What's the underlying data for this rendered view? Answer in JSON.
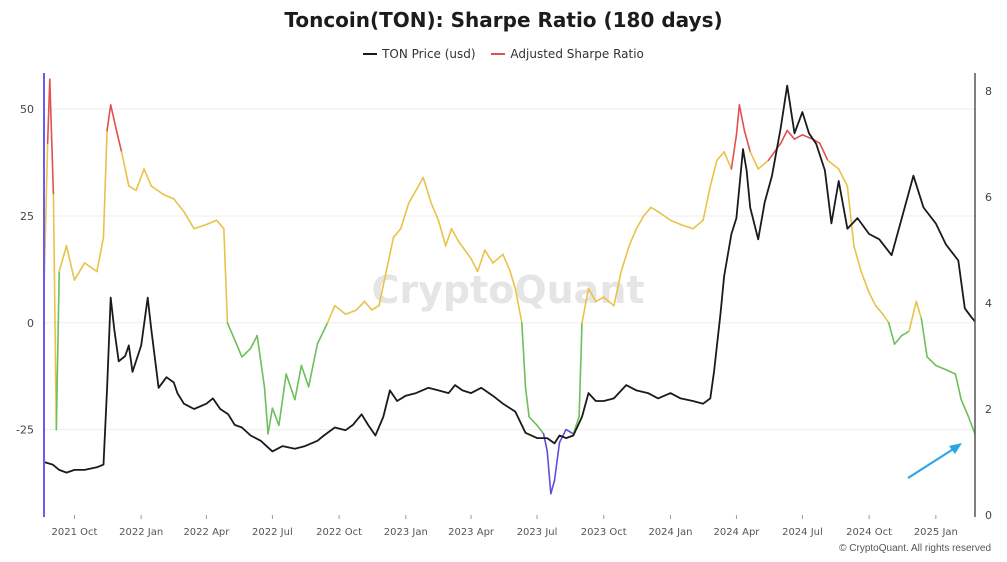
{
  "chart_data": {
    "type": "line",
    "title": "Toncoin(TON): Sharpe Ratio (180 days)",
    "watermark": "CryptoQuant",
    "copyright": "© CryptoQuant. All rights reserved",
    "legend": [
      {
        "name": "TON Price (usd)",
        "color": "#1a1a1a"
      },
      {
        "name": "Adjusted Sharpe Ratio",
        "color": "#e05050"
      }
    ],
    "x_ticks": [
      "2021 Oct",
      "2022 Jan",
      "2022 Apr",
      "2022 Jul",
      "2022 Oct",
      "2023 Jan",
      "2023 Apr",
      "2023 Jul",
      "2023 Oct",
      "2024 Jan",
      "2024 Apr",
      "2024 Jul",
      "2024 Oct",
      "2025 Jan"
    ],
    "x_range": [
      "2021-08-20",
      "2025-02-24"
    ],
    "y_left": {
      "ticks": [
        50,
        25,
        0,
        -25
      ],
      "range": [
        -45,
        58
      ]
    },
    "y_right": {
      "ticks": [
        8,
        6,
        4,
        2,
        0
      ],
      "range": [
        0,
        8.3
      ]
    },
    "sharpe_colors": {
      "high": "#e05050",
      "mid": "#e8c34a",
      "low": "#6cbf5a",
      "very_low": "#5b4fe0"
    },
    "sharpe_thresholds": {
      "high_above": 40,
      "mid_above": 0,
      "low_above": -25
    },
    "series": [
      {
        "name": "TON Price (usd)",
        "axis": "right",
        "points": [
          [
            "2021-08-20",
            1.0
          ],
          [
            "2021-09-01",
            0.95
          ],
          [
            "2021-09-10",
            0.85
          ],
          [
            "2021-09-20",
            0.8
          ],
          [
            "2021-10-01",
            0.85
          ],
          [
            "2021-10-15",
            0.85
          ],
          [
            "2021-11-01",
            0.9
          ],
          [
            "2021-11-10",
            0.95
          ],
          [
            "2021-11-15",
            2.4
          ],
          [
            "2021-11-20",
            4.1
          ],
          [
            "2021-11-25",
            3.5
          ],
          [
            "2021-12-01",
            2.9
          ],
          [
            "2021-12-10",
            3.0
          ],
          [
            "2021-12-15",
            3.2
          ],
          [
            "2021-12-20",
            2.7
          ],
          [
            "2022-01-01",
            3.2
          ],
          [
            "2022-01-10",
            4.1
          ],
          [
            "2022-01-15",
            3.5
          ],
          [
            "2022-01-25",
            2.4
          ],
          [
            "2022-02-05",
            2.6
          ],
          [
            "2022-02-15",
            2.5
          ],
          [
            "2022-02-20",
            2.3
          ],
          [
            "2022-03-01",
            2.1
          ],
          [
            "2022-03-15",
            2.0
          ],
          [
            "2022-04-01",
            2.1
          ],
          [
            "2022-04-10",
            2.2
          ],
          [
            "2022-04-20",
            2.0
          ],
          [
            "2022-05-01",
            1.9
          ],
          [
            "2022-05-10",
            1.7
          ],
          [
            "2022-05-20",
            1.65
          ],
          [
            "2022-06-01",
            1.5
          ],
          [
            "2022-06-15",
            1.4
          ],
          [
            "2022-07-01",
            1.2
          ],
          [
            "2022-07-15",
            1.3
          ],
          [
            "2022-08-01",
            1.25
          ],
          [
            "2022-08-15",
            1.3
          ],
          [
            "2022-09-01",
            1.4
          ],
          [
            "2022-09-10",
            1.5
          ],
          [
            "2022-09-25",
            1.65
          ],
          [
            "2022-10-10",
            1.6
          ],
          [
            "2022-10-20",
            1.7
          ],
          [
            "2022-11-01",
            1.9
          ],
          [
            "2022-11-10",
            1.7
          ],
          [
            "2022-11-20",
            1.5
          ],
          [
            "2022-12-01",
            1.85
          ],
          [
            "2022-12-10",
            2.35
          ],
          [
            "2022-12-20",
            2.15
          ],
          [
            "2023-01-01",
            2.25
          ],
          [
            "2023-01-15",
            2.3
          ],
          [
            "2023-02-01",
            2.4
          ],
          [
            "2023-02-15",
            2.35
          ],
          [
            "2023-03-01",
            2.3
          ],
          [
            "2023-03-10",
            2.45
          ],
          [
            "2023-03-20",
            2.35
          ],
          [
            "2023-04-01",
            2.3
          ],
          [
            "2023-04-15",
            2.4
          ],
          [
            "2023-05-01",
            2.25
          ],
          [
            "2023-05-15",
            2.1
          ],
          [
            "2023-06-01",
            1.95
          ],
          [
            "2023-06-15",
            1.55
          ],
          [
            "2023-07-01",
            1.45
          ],
          [
            "2023-07-15",
            1.45
          ],
          [
            "2023-07-25",
            1.35
          ],
          [
            "2023-08-01",
            1.5
          ],
          [
            "2023-08-10",
            1.45
          ],
          [
            "2023-08-20",
            1.5
          ],
          [
            "2023-09-01",
            1.85
          ],
          [
            "2023-09-10",
            2.3
          ],
          [
            "2023-09-20",
            2.15
          ],
          [
            "2023-10-01",
            2.15
          ],
          [
            "2023-10-15",
            2.2
          ],
          [
            "2023-11-01",
            2.45
          ],
          [
            "2023-11-15",
            2.35
          ],
          [
            "2023-12-01",
            2.3
          ],
          [
            "2023-12-15",
            2.2
          ],
          [
            "2024-01-01",
            2.3
          ],
          [
            "2024-01-15",
            2.2
          ],
          [
            "2024-02-01",
            2.15
          ],
          [
            "2024-02-15",
            2.1
          ],
          [
            "2024-02-25",
            2.2
          ],
          [
            "2024-03-01",
            2.7
          ],
          [
            "2024-03-10",
            3.8
          ],
          [
            "2024-03-15",
            4.5
          ],
          [
            "2024-03-25",
            5.3
          ],
          [
            "2024-04-01",
            5.6
          ],
          [
            "2024-04-10",
            6.9
          ],
          [
            "2024-04-15",
            6.5
          ],
          [
            "2024-04-20",
            5.8
          ],
          [
            "2024-05-01",
            5.2
          ],
          [
            "2024-05-10",
            5.9
          ],
          [
            "2024-05-20",
            6.4
          ],
          [
            "2024-06-01",
            7.3
          ],
          [
            "2024-06-10",
            8.1
          ],
          [
            "2024-06-20",
            7.2
          ],
          [
            "2024-07-01",
            7.6
          ],
          [
            "2024-07-10",
            7.2
          ],
          [
            "2024-07-20",
            7.0
          ],
          [
            "2024-08-01",
            6.5
          ],
          [
            "2024-08-10",
            5.5
          ],
          [
            "2024-08-20",
            6.3
          ],
          [
            "2024-09-01",
            5.4
          ],
          [
            "2024-09-15",
            5.6
          ],
          [
            "2024-10-01",
            5.3
          ],
          [
            "2024-10-15",
            5.2
          ],
          [
            "2024-11-01",
            4.9
          ],
          [
            "2024-11-15",
            5.6
          ],
          [
            "2024-12-01",
            6.4
          ],
          [
            "2024-12-15",
            5.8
          ],
          [
            "2025-01-01",
            5.5
          ],
          [
            "2025-01-15",
            5.1
          ],
          [
            "2025-02-01",
            4.8
          ],
          [
            "2025-02-10",
            3.9
          ],
          [
            "2025-02-18",
            3.75
          ],
          [
            "2025-02-24",
            3.65
          ]
        ]
      },
      {
        "name": "Adjusted Sharpe Ratio",
        "axis": "left",
        "points": [
          [
            "2021-08-20",
            8
          ],
          [
            "2021-08-25",
            42
          ],
          [
            "2021-08-28",
            57
          ],
          [
            "2021-09-02",
            30
          ],
          [
            "2021-09-06",
            -25
          ],
          [
            "2021-09-10",
            12
          ],
          [
            "2021-09-20",
            18
          ],
          [
            "2021-10-01",
            10
          ],
          [
            "2021-10-15",
            14
          ],
          [
            "2021-11-01",
            12
          ],
          [
            "2021-11-10",
            20
          ],
          [
            "2021-11-15",
            45
          ],
          [
            "2021-11-20",
            51
          ],
          [
            "2021-11-28",
            45
          ],
          [
            "2021-12-05",
            40
          ],
          [
            "2021-12-15",
            32
          ],
          [
            "2021-12-25",
            31
          ],
          [
            "2022-01-05",
            36
          ],
          [
            "2022-01-15",
            32
          ],
          [
            "2022-02-01",
            30
          ],
          [
            "2022-02-15",
            29
          ],
          [
            "2022-03-01",
            26
          ],
          [
            "2022-03-15",
            22
          ],
          [
            "2022-04-01",
            23
          ],
          [
            "2022-04-15",
            24
          ],
          [
            "2022-04-25",
            22
          ],
          [
            "2022-04-30",
            0
          ],
          [
            "2022-05-10",
            -4
          ],
          [
            "2022-05-20",
            -8
          ],
          [
            "2022-06-01",
            -6
          ],
          [
            "2022-06-10",
            -3
          ],
          [
            "2022-06-20",
            -15
          ],
          [
            "2022-06-25",
            -26
          ],
          [
            "2022-07-01",
            -20
          ],
          [
            "2022-07-10",
            -24
          ],
          [
            "2022-07-20",
            -12
          ],
          [
            "2022-08-01",
            -18
          ],
          [
            "2022-08-10",
            -10
          ],
          [
            "2022-08-20",
            -15
          ],
          [
            "2022-09-01",
            -5
          ],
          [
            "2022-09-15",
            0
          ],
          [
            "2022-09-25",
            4
          ],
          [
            "2022-10-10",
            2
          ],
          [
            "2022-10-25",
            3
          ],
          [
            "2022-11-05",
            5
          ],
          [
            "2022-11-15",
            3
          ],
          [
            "2022-11-25",
            4
          ],
          [
            "2022-12-05",
            12
          ],
          [
            "2022-12-15",
            20
          ],
          [
            "2022-12-25",
            22
          ],
          [
            "2023-01-05",
            28
          ],
          [
            "2023-01-15",
            31
          ],
          [
            "2023-01-25",
            34
          ],
          [
            "2023-02-05",
            28
          ],
          [
            "2023-02-15",
            24
          ],
          [
            "2023-02-25",
            18
          ],
          [
            "2023-03-05",
            22
          ],
          [
            "2023-03-15",
            19
          ],
          [
            "2023-04-01",
            15
          ],
          [
            "2023-04-10",
            12
          ],
          [
            "2023-04-20",
            17
          ],
          [
            "2023-05-01",
            14
          ],
          [
            "2023-05-15",
            16
          ],
          [
            "2023-05-25",
            12
          ],
          [
            "2023-06-01",
            8
          ],
          [
            "2023-06-10",
            0
          ],
          [
            "2023-06-15",
            -15
          ],
          [
            "2023-06-20",
            -22
          ],
          [
            "2023-07-01",
            -24
          ],
          [
            "2023-07-10",
            -26
          ],
          [
            "2023-07-15",
            -30
          ],
          [
            "2023-07-20",
            -40
          ],
          [
            "2023-07-25",
            -37
          ],
          [
            "2023-08-01",
            -28
          ],
          [
            "2023-08-10",
            -25
          ],
          [
            "2023-08-20",
            -26
          ],
          [
            "2023-08-28",
            -22
          ],
          [
            "2023-09-01",
            0
          ],
          [
            "2023-09-10",
            8
          ],
          [
            "2023-09-20",
            5
          ],
          [
            "2023-10-01",
            6
          ],
          [
            "2023-10-15",
            4
          ],
          [
            "2023-10-25",
            12
          ],
          [
            "2023-11-05",
            18
          ],
          [
            "2023-11-15",
            22
          ],
          [
            "2023-11-25",
            25
          ],
          [
            "2023-12-05",
            27
          ],
          [
            "2023-12-15",
            26
          ],
          [
            "2024-01-01",
            24
          ],
          [
            "2024-01-15",
            23
          ],
          [
            "2024-02-01",
            22
          ],
          [
            "2024-02-15",
            24
          ],
          [
            "2024-02-25",
            32
          ],
          [
            "2024-03-05",
            38
          ],
          [
            "2024-03-15",
            40
          ],
          [
            "2024-03-25",
            36
          ],
          [
            "2024-04-01",
            44
          ],
          [
            "2024-04-05",
            51
          ],
          [
            "2024-04-12",
            45
          ],
          [
            "2024-04-20",
            40
          ],
          [
            "2024-05-01",
            36
          ],
          [
            "2024-05-15",
            38
          ],
          [
            "2024-06-01",
            42
          ],
          [
            "2024-06-10",
            45
          ],
          [
            "2024-06-20",
            43
          ],
          [
            "2024-07-01",
            44
          ],
          [
            "2024-07-15",
            43
          ],
          [
            "2024-07-25",
            42
          ],
          [
            "2024-08-05",
            38
          ],
          [
            "2024-08-20",
            36
          ],
          [
            "2024-09-01",
            32
          ],
          [
            "2024-09-10",
            18
          ],
          [
            "2024-09-20",
            12
          ],
          [
            "2024-10-01",
            7
          ],
          [
            "2024-10-10",
            4
          ],
          [
            "2024-10-20",
            2
          ],
          [
            "2024-10-28",
            0
          ],
          [
            "2024-11-05",
            -5
          ],
          [
            "2024-11-15",
            -3
          ],
          [
            "2024-11-25",
            -2
          ],
          [
            "2024-12-05",
            5
          ],
          [
            "2024-12-12",
            1
          ],
          [
            "2024-12-20",
            -8
          ],
          [
            "2025-01-01",
            -10
          ],
          [
            "2025-01-15",
            -11
          ],
          [
            "2025-01-28",
            -12
          ],
          [
            "2025-02-05",
            -18
          ],
          [
            "2025-02-15",
            -22
          ],
          [
            "2025-02-24",
            -26
          ]
        ]
      }
    ]
  }
}
